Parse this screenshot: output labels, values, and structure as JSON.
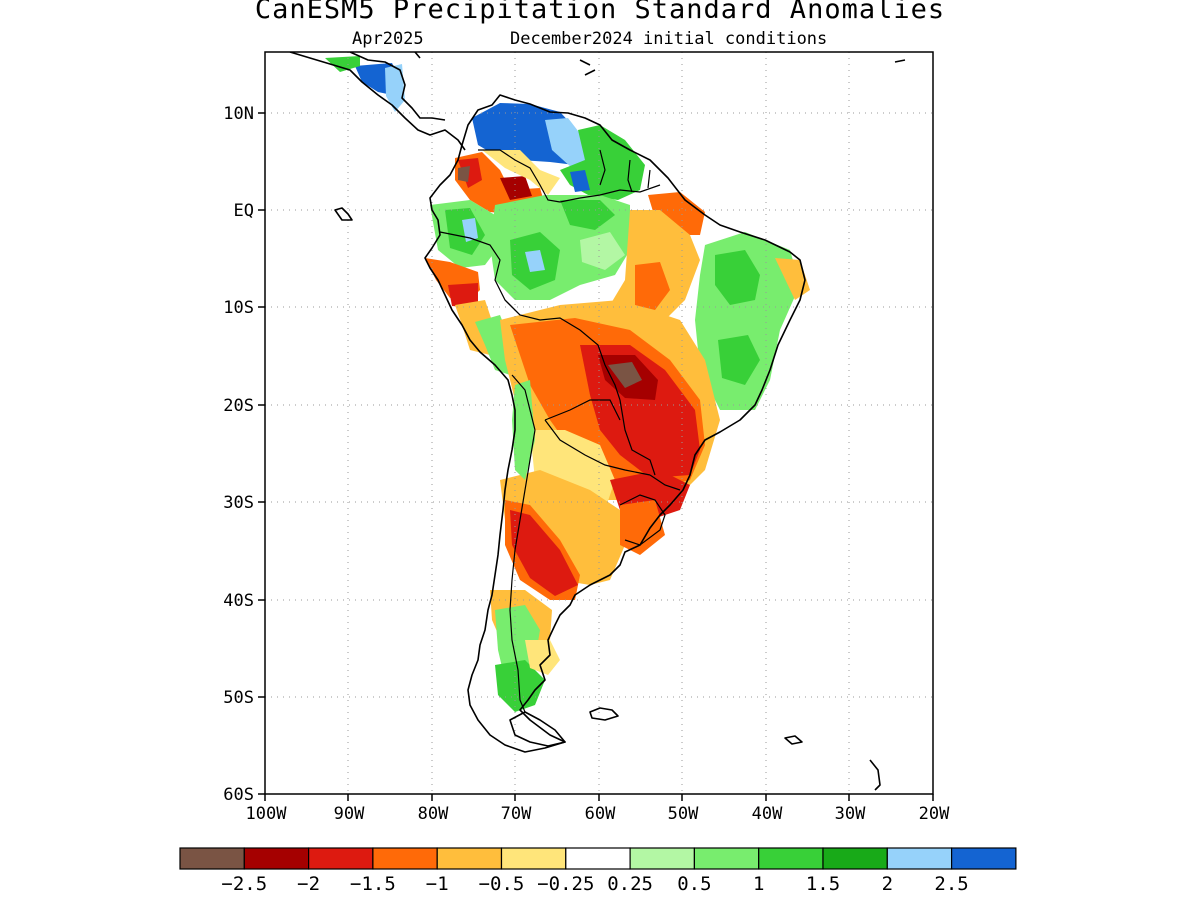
{
  "title": "CanESM5 Precipitation Standard Anomalies",
  "subtitle_left": "Apr2025",
  "subtitle_right": "December2024 initial conditions",
  "map": {
    "lon_range": [
      -100,
      -20
    ],
    "lat_range": [
      -60,
      16
    ],
    "lat_ticks": [
      {
        "value": 10,
        "label": "10N"
      },
      {
        "value": 0,
        "label": "EQ"
      },
      {
        "value": -10,
        "label": "10S"
      },
      {
        "value": -20,
        "label": "20S"
      },
      {
        "value": -30,
        "label": "30S"
      },
      {
        "value": -40,
        "label": "40S"
      },
      {
        "value": -50,
        "label": "50S"
      },
      {
        "value": -60,
        "label": "60S"
      }
    ],
    "lon_ticks": [
      {
        "value": -100,
        "label": "100W"
      },
      {
        "value": -90,
        "label": "90W"
      },
      {
        "value": -80,
        "label": "80W"
      },
      {
        "value": -70,
        "label": "70W"
      },
      {
        "value": -60,
        "label": "60W"
      },
      {
        "value": -50,
        "label": "50W"
      },
      {
        "value": -40,
        "label": "40W"
      },
      {
        "value": -30,
        "label": "30W"
      },
      {
        "value": -20,
        "label": "20W"
      }
    ],
    "grid": "dotted"
  },
  "colorbar": {
    "colors": [
      "#7a5444",
      "#a50000",
      "#dd1a10",
      "#ff6a08",
      "#ffbe3c",
      "#ffe57a",
      "#ffffff",
      "#b3f7a4",
      "#78ed6e",
      "#38d038",
      "#18aa18",
      "#96d2fa",
      "#1464d2"
    ],
    "labels": [
      "−2.5",
      "−2",
      "−1.5",
      "−1",
      "−0.5",
      "−0.25",
      "0.25",
      "0.5",
      "1",
      "1.5",
      "2",
      "2.5"
    ]
  }
}
